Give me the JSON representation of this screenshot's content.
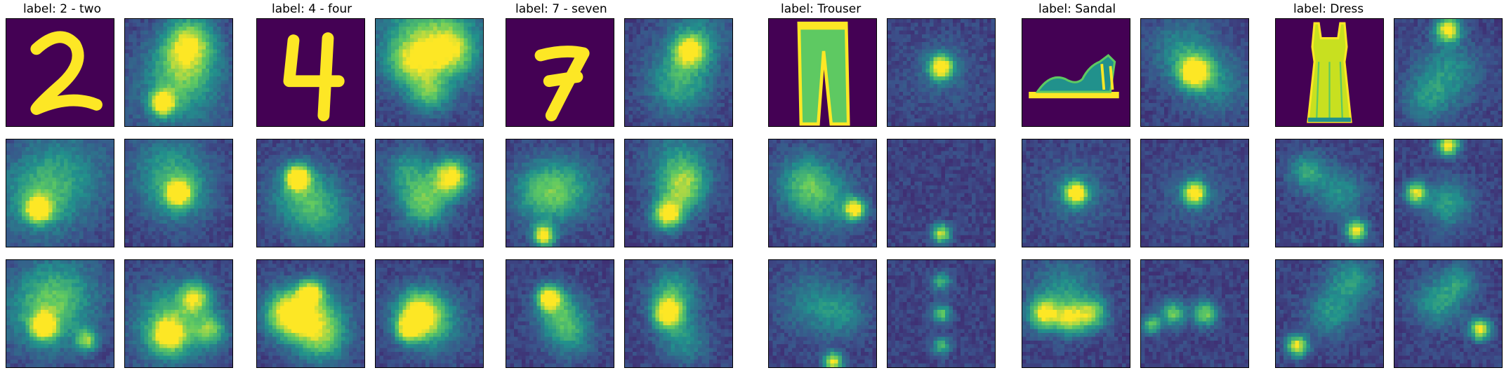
{
  "figure": {
    "colormap": [
      "#440154",
      "#3b528b",
      "#21918c",
      "#5ec962",
      "#fde725"
    ],
    "background_level": 0.14
  },
  "groups": [
    {
      "label": "label: 2 - two",
      "input_glyph": "digit-2",
      "maps": [
        {
          "blobs": [
            [
              0.6,
              0.2,
              0.16,
              0.6
            ],
            [
              0.55,
              0.45,
              0.2,
              0.4
            ],
            [
              0.35,
              0.78,
              0.08,
              0.9
            ],
            [
              0.5,
              0.7,
              0.3,
              0.25
            ]
          ]
        },
        {
          "blobs": [
            [
              0.3,
              0.55,
              0.25,
              0.35
            ],
            [
              0.3,
              0.65,
              0.08,
              0.9
            ],
            [
              0.55,
              0.3,
              0.3,
              0.25
            ]
          ]
        },
        {
          "blobs": [
            [
              0.5,
              0.5,
              0.2,
              0.35
            ],
            [
              0.5,
              0.5,
              0.07,
              0.9
            ],
            [
              0.4,
              0.25,
              0.25,
              0.25
            ]
          ]
        },
        {
          "blobs": [
            [
              0.35,
              0.5,
              0.25,
              0.35
            ],
            [
              0.35,
              0.62,
              0.08,
              0.85
            ],
            [
              0.75,
              0.75,
              0.07,
              0.6
            ],
            [
              0.5,
              0.3,
              0.25,
              0.3
            ]
          ]
        },
        {
          "blobs": [
            [
              0.45,
              0.6,
              0.25,
              0.5
            ],
            [
              0.65,
              0.35,
              0.1,
              0.6
            ],
            [
              0.4,
              0.7,
              0.1,
              0.7
            ],
            [
              0.8,
              0.65,
              0.1,
              0.45
            ]
          ]
        }
      ]
    },
    {
      "label": "label: 4 - four",
      "input_glyph": "digit-4",
      "maps": [
        {
          "blobs": [
            [
              0.5,
              0.2,
              0.3,
              0.55
            ],
            [
              0.35,
              0.4,
              0.15,
              0.45
            ],
            [
              0.7,
              0.3,
              0.15,
              0.45
            ],
            [
              0.5,
              0.7,
              0.12,
              0.4
            ]
          ]
        },
        {
          "blobs": [
            [
              0.38,
              0.35,
              0.08,
              0.9
            ],
            [
              0.4,
              0.5,
              0.2,
              0.35
            ],
            [
              0.6,
              0.7,
              0.2,
              0.3
            ]
          ]
        },
        {
          "blobs": [
            [
              0.7,
              0.35,
              0.12,
              0.85
            ],
            [
              0.45,
              0.6,
              0.15,
              0.55
            ],
            [
              0.3,
              0.3,
              0.15,
              0.35
            ]
          ]
        },
        {
          "blobs": [
            [
              0.3,
              0.5,
              0.15,
              0.85
            ],
            [
              0.5,
              0.3,
              0.08,
              0.7
            ],
            [
              0.55,
              0.55,
              0.2,
              0.5
            ],
            [
              0.6,
              0.75,
              0.15,
              0.35
            ]
          ]
        },
        {
          "blobs": [
            [
              0.4,
              0.5,
              0.15,
              0.8
            ],
            [
              0.3,
              0.65,
              0.08,
              0.55
            ],
            [
              0.55,
              0.6,
              0.2,
              0.3
            ]
          ]
        }
      ]
    },
    {
      "label": "label: 7 - seven",
      "input_glyph": "digit-7",
      "maps": [
        {
          "blobs": [
            [
              0.6,
              0.3,
              0.1,
              0.65
            ],
            [
              0.5,
              0.6,
              0.2,
              0.4
            ],
            [
              0.65,
              0.2,
              0.2,
              0.3
            ]
          ]
        },
        {
          "blobs": [
            [
              0.35,
              0.5,
              0.2,
              0.45
            ],
            [
              0.35,
              0.9,
              0.07,
              0.85
            ],
            [
              0.6,
              0.45,
              0.2,
              0.25
            ]
          ]
        },
        {
          "blobs": [
            [
              0.4,
              0.7,
              0.1,
              0.85
            ],
            [
              0.55,
              0.45,
              0.15,
              0.55
            ],
            [
              0.5,
              0.2,
              0.2,
              0.3
            ]
          ]
        },
        {
          "blobs": [
            [
              0.4,
              0.35,
              0.08,
              0.85
            ],
            [
              0.5,
              0.5,
              0.15,
              0.4
            ],
            [
              0.6,
              0.7,
              0.15,
              0.3
            ]
          ]
        },
        {
          "blobs": [
            [
              0.4,
              0.5,
              0.1,
              0.85
            ],
            [
              0.45,
              0.3,
              0.15,
              0.4
            ],
            [
              0.55,
              0.75,
              0.15,
              0.3
            ]
          ]
        }
      ]
    },
    {
      "label": "label: Trouser",
      "input_glyph": "trouser",
      "maps": [
        {
          "blobs": [
            [
              0.5,
              0.45,
              0.08,
              0.9
            ],
            [
              0.5,
              0.5,
              0.22,
              0.12
            ]
          ]
        },
        {
          "blobs": [
            [
              0.35,
              0.4,
              0.18,
              0.45
            ],
            [
              0.8,
              0.65,
              0.07,
              0.85
            ],
            [
              0.55,
              0.6,
              0.2,
              0.25
            ]
          ]
        },
        {
          "blobs": [
            [
              0.5,
              0.88,
              0.06,
              0.75
            ]
          ]
        },
        {
          "blobs": [
            [
              0.6,
              0.95,
              0.06,
              0.8
            ],
            [
              0.4,
              0.4,
              0.2,
              0.25
            ],
            [
              0.7,
              0.5,
              0.15,
              0.25
            ]
          ]
        },
        {
          "blobs": [
            [
              0.5,
              0.5,
              0.06,
              0.55
            ],
            [
              0.5,
              0.2,
              0.06,
              0.45
            ],
            [
              0.5,
              0.8,
              0.06,
              0.45
            ]
          ]
        }
      ]
    },
    {
      "label": "label: Sandal",
      "input_glyph": "sandal",
      "maps": [
        {
          "blobs": [
            [
              0.5,
              0.5,
              0.1,
              0.9
            ],
            [
              0.4,
              0.3,
              0.2,
              0.3
            ],
            [
              0.7,
              0.6,
              0.2,
              0.25
            ]
          ]
        },
        {
          "blobs": [
            [
              0.5,
              0.5,
              0.07,
              0.9
            ],
            [
              0.5,
              0.5,
              0.2,
              0.2
            ]
          ]
        },
        {
          "blobs": [
            [
              0.5,
              0.5,
              0.07,
              0.9
            ],
            [
              0.5,
              0.5,
              0.2,
              0.15
            ]
          ]
        },
        {
          "blobs": [
            [
              0.2,
              0.5,
              0.1,
              0.75
            ],
            [
              0.45,
              0.55,
              0.1,
              0.6
            ],
            [
              0.65,
              0.5,
              0.1,
              0.55
            ],
            [
              0.4,
              0.3,
              0.2,
              0.3
            ]
          ]
        },
        {
          "blobs": [
            [
              0.6,
              0.5,
              0.08,
              0.6
            ],
            [
              0.3,
              0.5,
              0.08,
              0.55
            ],
            [
              0.1,
              0.6,
              0.06,
              0.5
            ]
          ]
        }
      ]
    },
    {
      "label": "label: Dress",
      "input_glyph": "dress",
      "maps": [
        {
          "blobs": [
            [
              0.5,
              0.1,
              0.08,
              0.85
            ],
            [
              0.5,
              0.5,
              0.2,
              0.3
            ],
            [
              0.3,
              0.75,
              0.15,
              0.25
            ]
          ]
        },
        {
          "blobs": [
            [
              0.75,
              0.85,
              0.07,
              0.8
            ],
            [
              0.3,
              0.3,
              0.12,
              0.4
            ],
            [
              0.6,
              0.5,
              0.15,
              0.3
            ]
          ]
        },
        {
          "blobs": [
            [
              0.5,
              0.05,
              0.07,
              0.85
            ],
            [
              0.2,
              0.5,
              0.07,
              0.75
            ],
            [
              0.5,
              0.6,
              0.15,
              0.35
            ]
          ]
        },
        {
          "blobs": [
            [
              0.2,
              0.8,
              0.07,
              0.8
            ],
            [
              0.7,
              0.2,
              0.15,
              0.35
            ],
            [
              0.5,
              0.5,
              0.15,
              0.3
            ]
          ]
        },
        {
          "blobs": [
            [
              0.8,
              0.65,
              0.07,
              0.8
            ],
            [
              0.4,
              0.4,
              0.15,
              0.35
            ],
            [
              0.6,
              0.2,
              0.12,
              0.3
            ]
          ]
        }
      ]
    }
  ]
}
